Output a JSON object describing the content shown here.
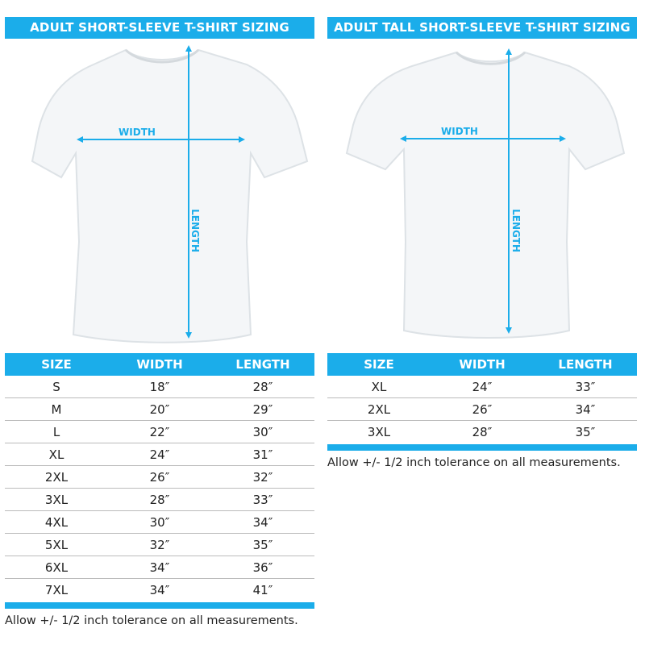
{
  "colors": {
    "accent": "#1badea"
  },
  "left": {
    "title": "ADULT SHORT-SLEEVE T-SHIRT SIZING",
    "width_label": "WIDTH",
    "length_label": "LENGTH",
    "headers": [
      "SIZE",
      "WIDTH",
      "LENGTH"
    ],
    "rows": [
      [
        "S",
        "18″",
        "28″"
      ],
      [
        "M",
        "20″",
        "29″"
      ],
      [
        "L",
        "22″",
        "30″"
      ],
      [
        "XL",
        "24″",
        "31″"
      ],
      [
        "2XL",
        "26″",
        "32″"
      ],
      [
        "3XL",
        "28″",
        "33″"
      ],
      [
        "4XL",
        "30″",
        "34″"
      ],
      [
        "5XL",
        "32″",
        "35″"
      ],
      [
        "6XL",
        "34″",
        "36″"
      ],
      [
        "7XL",
        "34″",
        "41″"
      ]
    ],
    "note": "Allow +/- 1/2 inch tolerance on all measurements."
  },
  "right": {
    "title": "ADULT TALL SHORT-SLEEVE T-SHIRT SIZING",
    "width_label": "WIDTH",
    "length_label": "LENGTH",
    "headers": [
      "SIZE",
      "WIDTH",
      "LENGTH"
    ],
    "rows": [
      [
        "XL",
        "24″",
        "33″"
      ],
      [
        "2XL",
        "26″",
        "34″"
      ],
      [
        "3XL",
        "28″",
        "35″"
      ]
    ],
    "note": "Allow +/- 1/2 inch tolerance on all measurements."
  }
}
